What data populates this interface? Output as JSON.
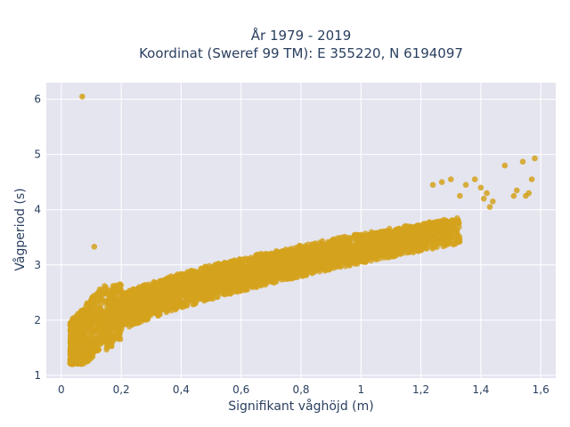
{
  "chart_data": {
    "type": "scatter",
    "title_lines": [
      "År 1979 - 2019",
      "Koordinat (Sweref 99 TM): E 355220, N 6194097"
    ],
    "xlabel": "Signifikant våghöjd (m)",
    "ylabel": "Vågperiod (s)",
    "xlim": [
      -0.05,
      1.65
    ],
    "ylim": [
      0.95,
      6.3
    ],
    "x_ticks": [
      0,
      0.2,
      0.4,
      0.6,
      0.8,
      1,
      1.2,
      1.4,
      1.6
    ],
    "x_tick_labels": [
      "0",
      "0,2",
      "0,4",
      "0,6",
      "0,8",
      "1",
      "1,2",
      "1,4",
      "1,6"
    ],
    "y_ticks": [
      1,
      2,
      3,
      4,
      5,
      6
    ],
    "y_tick_labels": [
      "1",
      "2",
      "3",
      "4",
      "5",
      "6"
    ],
    "grid": true,
    "marker_color": "#D4A21C",
    "plot_bg": "#E5E5F0",
    "cloud": {
      "description_points": [
        [
          0.03,
          1.22
        ],
        [
          0.05,
          1.3
        ],
        [
          0.08,
          1.5
        ],
        [
          0.1,
          1.7
        ],
        [
          0.12,
          1.9
        ],
        [
          0.15,
          2.1
        ],
        [
          0.2,
          2.35
        ],
        [
          0.3,
          2.6
        ],
        [
          0.4,
          2.8
        ],
        [
          0.5,
          3.0
        ],
        [
          0.6,
          3.15
        ],
        [
          0.7,
          3.35
        ],
        [
          0.8,
          3.5
        ],
        [
          0.9,
          3.65
        ],
        [
          1.0,
          3.8
        ],
        [
          1.1,
          3.95
        ],
        [
          1.2,
          4.1
        ],
        [
          1.3,
          4.25
        ]
      ]
    },
    "points": [
      {
        "x": 0.07,
        "y": 6.05
      },
      {
        "x": 0.11,
        "y": 3.33
      },
      {
        "x": 0.03,
        "y": 1.22
      },
      {
        "x": 0.04,
        "y": 1.5
      },
      {
        "x": 0.05,
        "y": 1.35
      },
      {
        "x": 1.24,
        "y": 4.45
      },
      {
        "x": 1.27,
        "y": 4.5
      },
      {
        "x": 1.3,
        "y": 4.55
      },
      {
        "x": 1.33,
        "y": 4.25
      },
      {
        "x": 1.35,
        "y": 4.45
      },
      {
        "x": 1.38,
        "y": 4.55
      },
      {
        "x": 1.4,
        "y": 4.4
      },
      {
        "x": 1.41,
        "y": 4.2
      },
      {
        "x": 1.42,
        "y": 4.3
      },
      {
        "x": 1.43,
        "y": 4.05
      },
      {
        "x": 1.44,
        "y": 4.15
      },
      {
        "x": 1.48,
        "y": 4.8
      },
      {
        "x": 1.51,
        "y": 4.25
      },
      {
        "x": 1.52,
        "y": 4.35
      },
      {
        "x": 1.54,
        "y": 4.87
      },
      {
        "x": 1.55,
        "y": 4.25
      },
      {
        "x": 1.56,
        "y": 4.3
      },
      {
        "x": 1.57,
        "y": 4.55
      },
      {
        "x": 1.58,
        "y": 4.93
      }
    ]
  }
}
